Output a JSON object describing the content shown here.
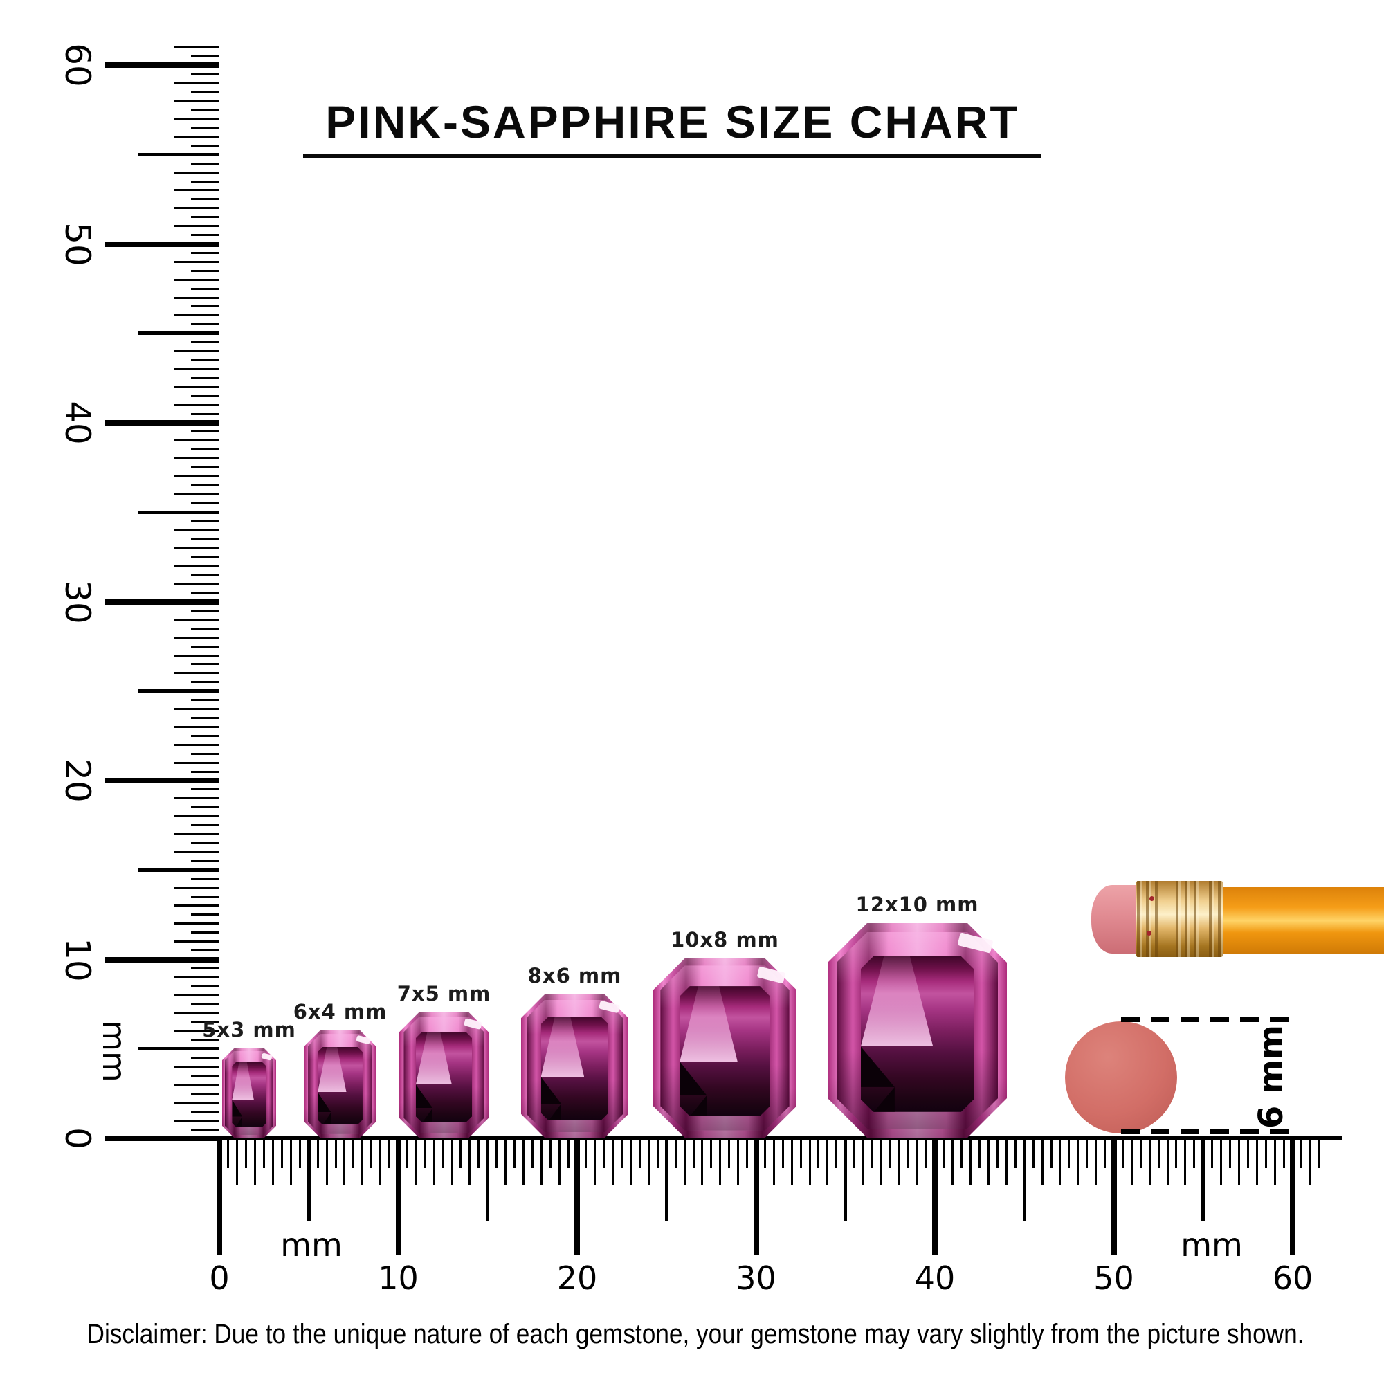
{
  "title": "PINK-SAPPHIRE SIZE CHART",
  "gems": [
    {
      "label": "5x3 mm",
      "length_mm": 5,
      "width_mm": 3
    },
    {
      "label": "6x4 mm",
      "length_mm": 6,
      "width_mm": 4
    },
    {
      "label": "7x5 mm",
      "length_mm": 7,
      "width_mm": 5
    },
    {
      "label": "8x6 mm",
      "length_mm": 8,
      "width_mm": 6
    },
    {
      "label": "10x8 mm",
      "length_mm": 10,
      "width_mm": 8
    },
    {
      "label": "12x10 mm",
      "length_mm": 12,
      "width_mm": 10
    }
  ],
  "rulers": {
    "horizontal": {
      "unit": "mm",
      "major_labels": [
        "0",
        "10",
        "20",
        "30",
        "40",
        "50",
        "60"
      ],
      "unit_label_left": "mm",
      "unit_label_right": "mm",
      "range_mm": [
        0,
        60
      ]
    },
    "vertical": {
      "unit": "mm",
      "major_labels": [
        "0",
        "10",
        "20",
        "30",
        "40",
        "50",
        "60"
      ],
      "unit_label": "mm",
      "range_mm": [
        0,
        60
      ]
    }
  },
  "eraser_reference": {
    "size_label": "6 mm"
  },
  "disclaimer": "Disclaimer: Due to the unique nature of each gemstone, your gemstone may vary slightly from the picture shown.",
  "colors": {
    "gem_pink": "#e26ab9",
    "gem_light": "#f3a3dc",
    "gem_dark": "#5c0b3e",
    "pencil_orange": "#f59d18",
    "ferrule_gold": "#e8c27a",
    "eraser_pink": "#e18b92",
    "eraser_circle": "#d26e67",
    "ink": "#000000"
  }
}
